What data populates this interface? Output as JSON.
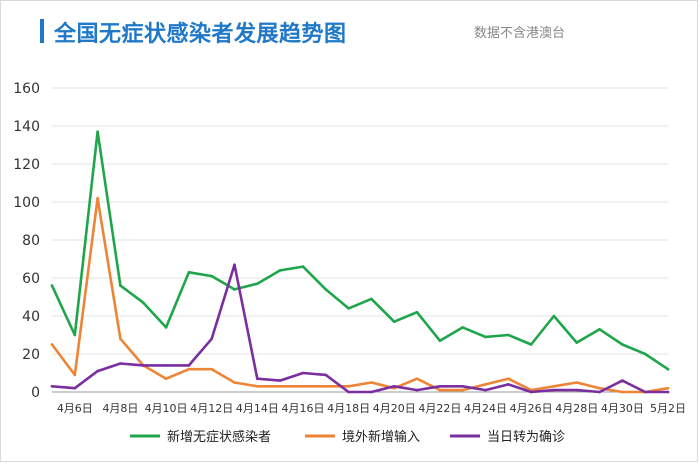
{
  "header": {
    "title": "全国无症状感染者发展趋势图",
    "subtitle": "数据不含港澳台"
  },
  "chart_data": {
    "type": "line",
    "x": [
      "4月5日",
      "4月6日",
      "4月7日",
      "4月8日",
      "4月9日",
      "4月10日",
      "4月11日",
      "4月12日",
      "4月13日",
      "4月14日",
      "4月15日",
      "4月16日",
      "4月17日",
      "4月18日",
      "4月19日",
      "4月20日",
      "4月21日",
      "4月22日",
      "4月23日",
      "4月24日",
      "4月25日",
      "4月26日",
      "4月27日",
      "4月28日",
      "4月29日",
      "4月30日",
      "5月1日",
      "5月2日"
    ],
    "x_tick_labels": [
      "4月6日",
      "4月8日",
      "4月10日",
      "4月12日",
      "4月14日",
      "4月16日",
      "4月18日",
      "4月20日",
      "4月22日",
      "4月24日",
      "4月26日",
      "4月28日",
      "4月30日",
      "5月2日"
    ],
    "ylim": [
      0,
      160
    ],
    "y_ticks": [
      0,
      20,
      40,
      60,
      80,
      100,
      120,
      140,
      160
    ],
    "grid": true,
    "legend_position": "bottom",
    "series": [
      {
        "name": "新增无症状感染者",
        "color": "#1fa64a",
        "values": [
          56,
          30,
          137,
          56,
          47,
          34,
          63,
          61,
          54,
          57,
          64,
          66,
          54,
          44,
          49,
          37,
          42,
          27,
          34,
          29,
          30,
          25,
          40,
          26,
          33,
          25,
          20,
          12
        ]
      },
      {
        "name": "境外新增输入",
        "color": "#ee8536",
        "values": [
          25,
          9,
          102,
          28,
          14,
          7,
          12,
          12,
          5,
          3,
          3,
          3,
          3,
          3,
          5,
          2,
          7,
          1,
          1,
          4,
          7,
          1,
          3,
          5,
          2,
          0,
          0,
          2
        ]
      },
      {
        "name": "当日转为确诊",
        "color": "#7a2ea0",
        "values": [
          3,
          2,
          11,
          15,
          14,
          14,
          14,
          28,
          67,
          7,
          6,
          10,
          9,
          0,
          0,
          3,
          1,
          3,
          3,
          1,
          4,
          0,
          1,
          1,
          0,
          6,
          0,
          0
        ]
      }
    ]
  }
}
